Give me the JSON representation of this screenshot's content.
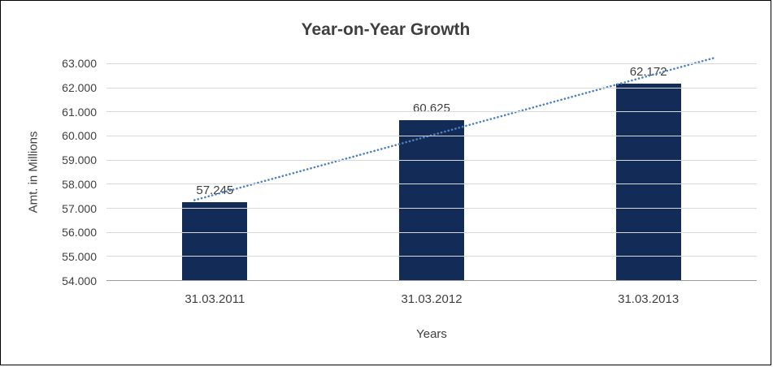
{
  "chart_data": {
    "type": "bar",
    "title": "Year-on-Year Growth",
    "xlabel": "Years",
    "ylabel": "Amt. in Millions",
    "categories": [
      "31.03.2011",
      "31.03.2012",
      "31.03.2013"
    ],
    "values": [
      57245,
      60625,
      62172
    ],
    "value_labels": [
      "57.245",
      "60.625",
      "62.172"
    ],
    "ylim": [
      54000,
      63000
    ],
    "y_tick_step": 1000,
    "y_tick_labels": [
      "63.000",
      "62.000",
      "61.000",
      "60.000",
      "59.000",
      "58.000",
      "57.000",
      "56.000",
      "55.000",
      "54.000"
    ],
    "grid": "horizontal",
    "legend": "none",
    "trendline": {
      "type": "linear",
      "style": "dotted"
    },
    "colors": {
      "bar": "#132B57",
      "trendline": "#4F81BD",
      "gridline": "#D9D9D9",
      "axis": "#9A9A9A",
      "text": "#3F3F3F",
      "background": "#FFFFFF"
    }
  }
}
